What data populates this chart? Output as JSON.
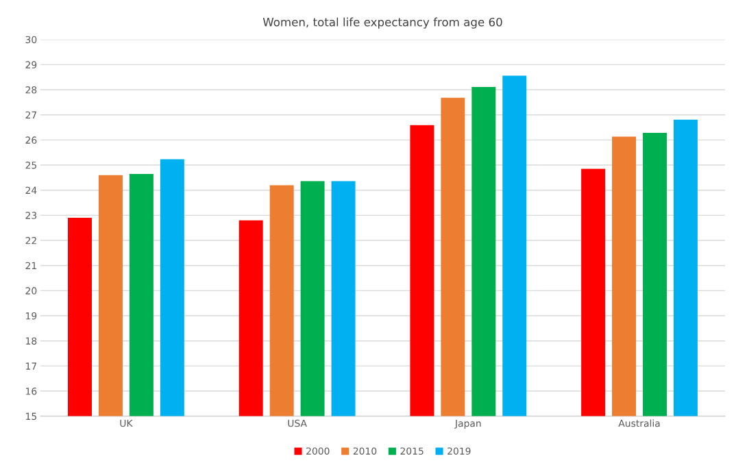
{
  "chart_data": {
    "type": "bar",
    "title": "Women, total life expectancy from age 60",
    "categories": [
      "UK",
      "USA",
      "Japan",
      "Australia"
    ],
    "series": [
      {
        "name": "2000",
        "color": "#ff0000",
        "values": [
          22.9,
          22.8,
          26.59,
          24.85
        ]
      },
      {
        "name": "2010",
        "color": "#ed7d31",
        "values": [
          24.6,
          24.2,
          27.68,
          26.13
        ]
      },
      {
        "name": "2015",
        "color": "#00b050",
        "values": [
          24.65,
          24.36,
          28.11,
          26.28
        ]
      },
      {
        "name": "2019",
        "color": "#00b0f0",
        "values": [
          25.23,
          24.36,
          28.56,
          26.81
        ]
      }
    ],
    "ylim": [
      15,
      30
    ],
    "yticks": [
      15,
      16,
      17,
      18,
      19,
      20,
      21,
      22,
      23,
      24,
      25,
      26,
      27,
      28,
      29,
      30
    ],
    "grid": "y",
    "legend": "bottom"
  }
}
